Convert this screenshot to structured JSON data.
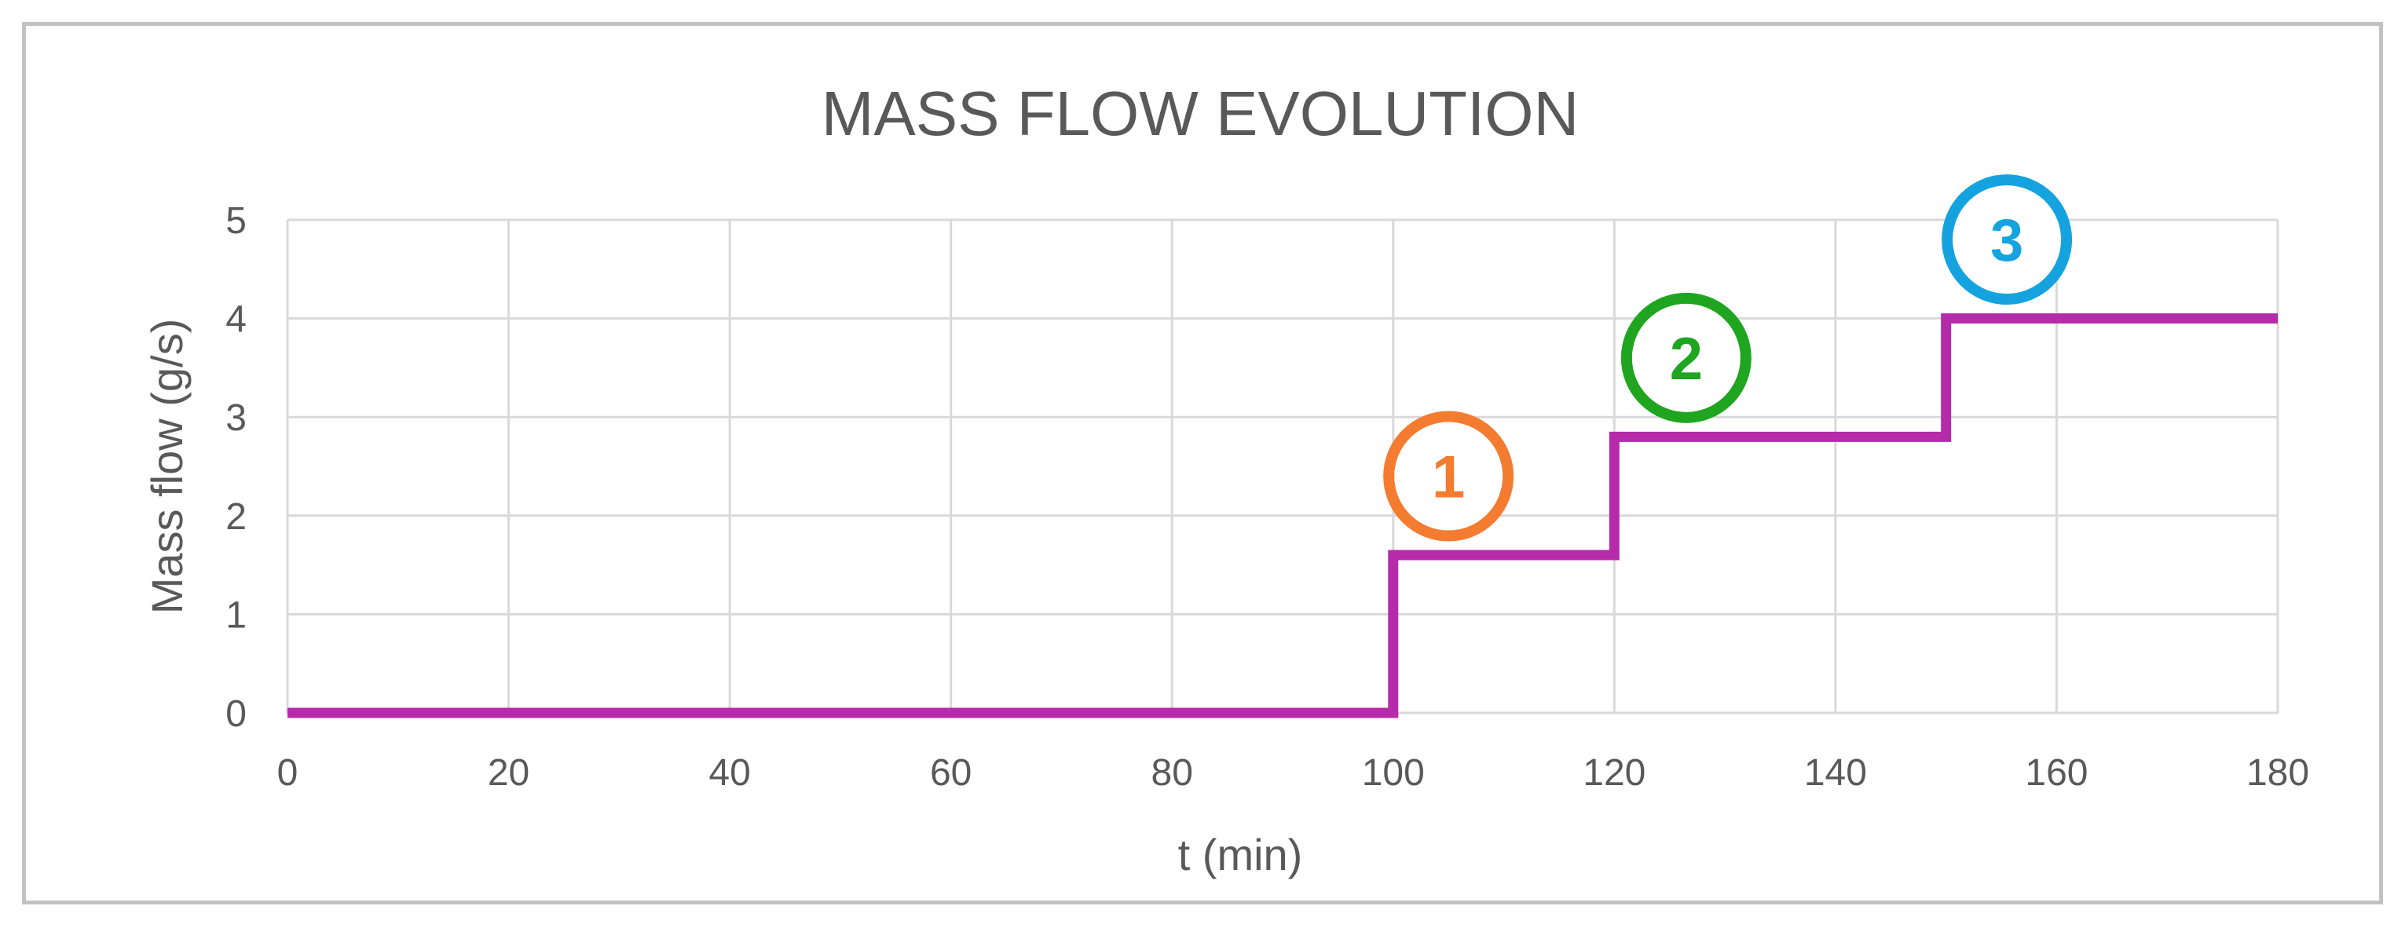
{
  "chart_data": {
    "type": "line",
    "title": "MASS FLOW EVOLUTION",
    "xlabel": "t (min)",
    "ylabel": "Mass flow (g/s)",
    "xlim": [
      0,
      180
    ],
    "ylim": [
      0,
      5
    ],
    "x_ticks": [
      "0",
      "20",
      "40",
      "60",
      "80",
      "100",
      "120",
      "140",
      "160",
      "180"
    ],
    "y_ticks": [
      "0",
      "1",
      "2",
      "3",
      "4",
      "5"
    ],
    "grid": true,
    "step": true,
    "series": [
      {
        "color": "#b52ba9",
        "x": [
          0,
          100,
          100,
          120,
          120,
          150,
          150,
          180
        ],
        "y": [
          0,
          0,
          1.6,
          1.6,
          2.8,
          2.8,
          4,
          4
        ]
      }
    ],
    "annotations": [
      {
        "label": "1",
        "x": 105,
        "y": 2.4,
        "color": "#f47c30"
      },
      {
        "label": "2",
        "x": 126.5,
        "y": 3.6,
        "color": "#1fa51f"
      },
      {
        "label": "3",
        "x": 155.5,
        "y": 4.8,
        "color": "#14a3df"
      }
    ]
  }
}
